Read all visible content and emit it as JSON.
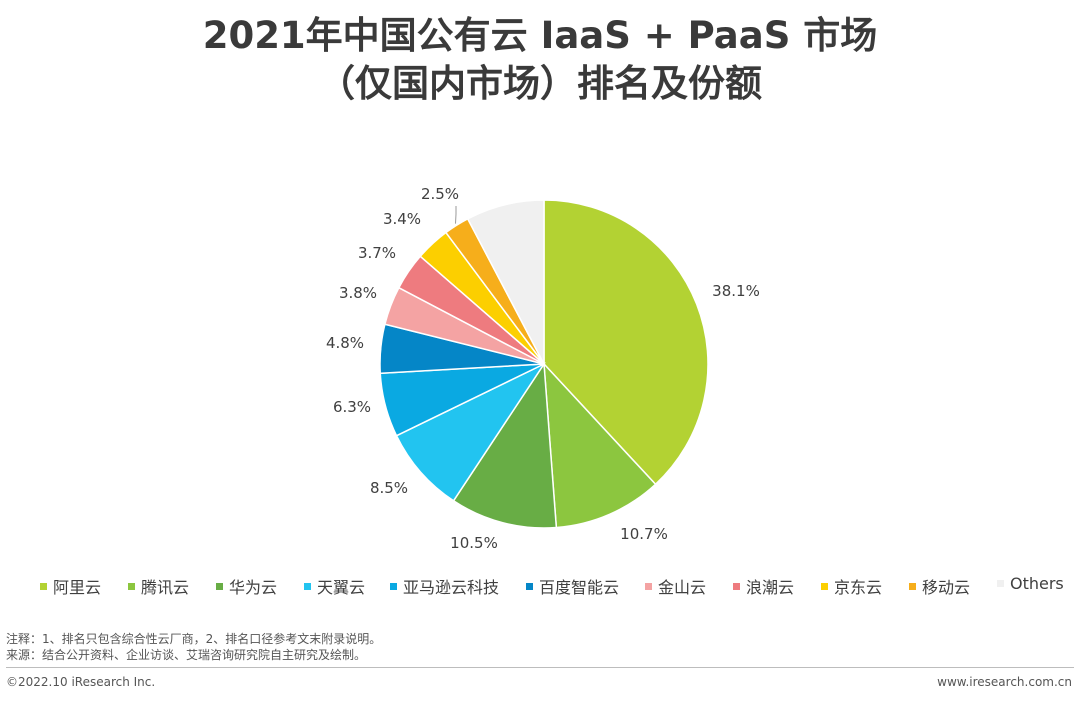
{
  "title": {
    "line1": "2021年中国公有云 IaaS + PaaS 市场",
    "line2": "（仅国内市场）排名及份额"
  },
  "chart_data": {
    "type": "pie",
    "title": "2021年中国公有云 IaaS + PaaS 市场（仅国内市场）排名及份额",
    "unit": "%",
    "slices": [
      {
        "name": "阿里云",
        "value": 38.1,
        "label": "38.1%",
        "color": "#b3d233"
      },
      {
        "name": "腾讯云",
        "value": 10.7,
        "label": "10.7%",
        "color": "#8cc63f"
      },
      {
        "name": "华为云",
        "value": 10.5,
        "label": "10.5%",
        "color": "#68ad45"
      },
      {
        "name": "天翼云",
        "value": 8.5,
        "label": "8.5%",
        "color": "#22c4f0"
      },
      {
        "name": "亚马逊云科技",
        "value": 6.3,
        "label": "6.3%",
        "color": "#0aa9e2"
      },
      {
        "name": "百度智能云",
        "value": 4.8,
        "label": "4.8%",
        "color": "#0586c7"
      },
      {
        "name": "金山云",
        "value": 3.8,
        "label": "3.8%",
        "color": "#f4a3a3"
      },
      {
        "name": "浪潮云",
        "value": 3.7,
        "label": "3.7%",
        "color": "#ee7b7f"
      },
      {
        "name": "京东云",
        "value": 3.4,
        "label": "3.4%",
        "color": "#fccf00"
      },
      {
        "name": "移动云",
        "value": 2.5,
        "label": "2.5%",
        "color": "#f6ae1b"
      },
      {
        "name": "Others",
        "value": 7.7,
        "label": "",
        "color": "#f0f0f0"
      }
    ],
    "legend_position": "bottom"
  },
  "notes": {
    "note1": "注释：1、排名只包含综合性云厂商，2、排名口径参考文末附录说明。",
    "note2": "来源：结合公开资料、企业访谈、艾瑞咨询研究院自主研究及绘制。"
  },
  "footer": {
    "copyright": "©2022.10 iResearch Inc.",
    "website": "www.iresearch.com.cn"
  }
}
